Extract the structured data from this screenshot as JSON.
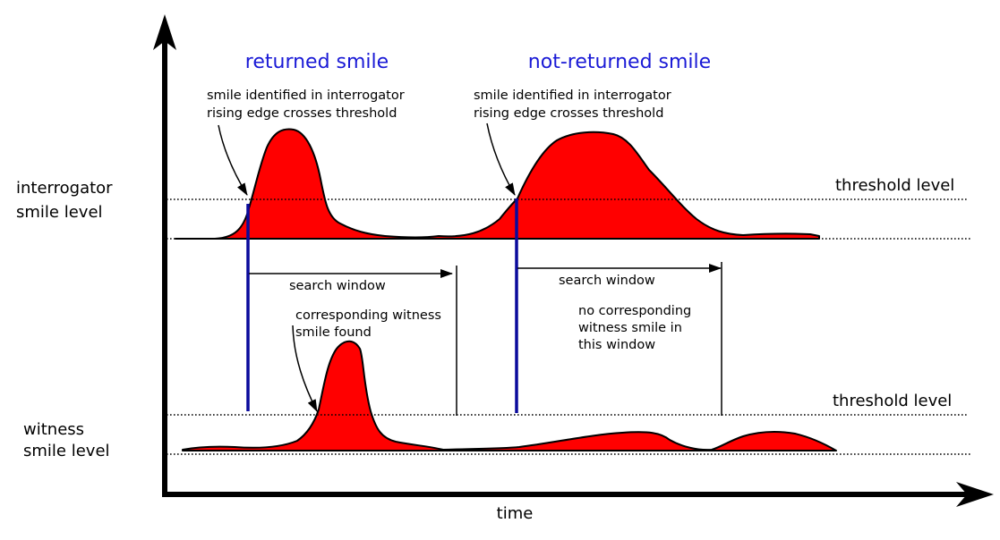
{
  "titles": {
    "returned": "returned smile",
    "not_returned": "not-returned smile"
  },
  "axes": {
    "x_label": "time"
  },
  "rows": {
    "interrogator_label": [
      "interrogator",
      "smile level"
    ],
    "witness_label": [
      "witness",
      "smile level"
    ],
    "threshold_label": "threshold level"
  },
  "annotations": {
    "smile_identified_left": [
      "smile identified in interrogator",
      "rising edge crosses threshold"
    ],
    "smile_identified_right": [
      "smile identified in interrogator",
      "rising edge crosses threshold"
    ],
    "search_window_left": "search window",
    "search_window_right": "search window",
    "corresponding_found": [
      "corresponding witness",
      "smile found"
    ],
    "no_corresponding": [
      "no corresponding",
      "witness smile in",
      "this window"
    ]
  },
  "colors": {
    "title": "#1a1ad6",
    "fill": "#ff0000",
    "marker": "#0a0a9c"
  }
}
